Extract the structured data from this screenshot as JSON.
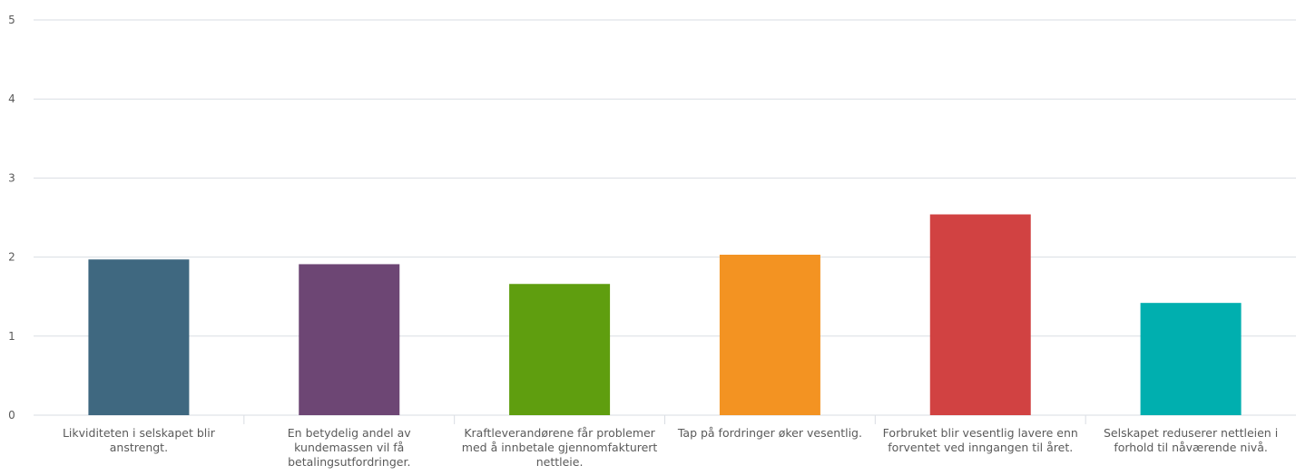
{
  "chart_data": {
    "type": "bar",
    "categories": [
      [
        "Likviditeten i selskapet blir",
        "anstrengt."
      ],
      [
        "En betydelig andel av",
        "kundemassen vil få",
        "betalingsutfordringer."
      ],
      [
        "Kraftleverandørene får problemer",
        "med å innbetale gjennomfakturert",
        "nettleie."
      ],
      [
        "Tap på fordringer øker vesentlig."
      ],
      [
        "Forbruket blir vesentlig lavere enn",
        "forventet ved inngangen til året."
      ],
      [
        "Selskapet reduserer nettleien i",
        "forhold til nåværende nivå."
      ]
    ],
    "values": [
      1.97,
      1.91,
      1.66,
      2.03,
      2.54,
      1.42
    ],
    "colors": [
      "#3f6880",
      "#6d4674",
      "#5f9e0f",
      "#f39322",
      "#d14242",
      "#00afaf"
    ],
    "yticks": [
      0,
      1,
      2,
      3,
      4,
      5
    ],
    "ylim": [
      0,
      5
    ],
    "grid": true,
    "title": "",
    "xlabel": "",
    "ylabel": ""
  }
}
